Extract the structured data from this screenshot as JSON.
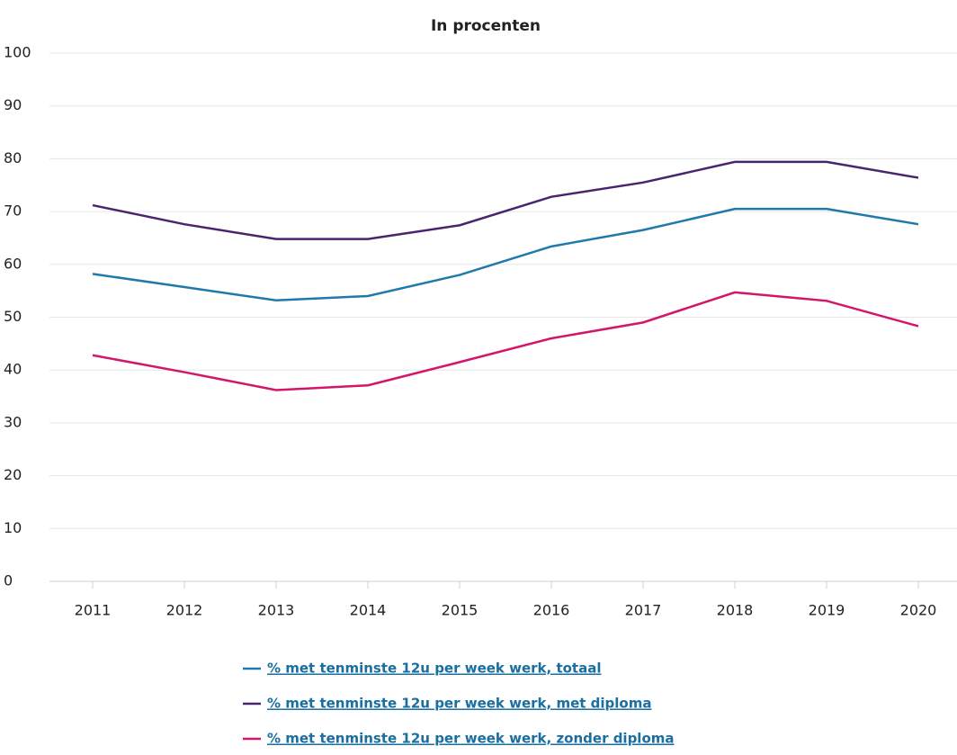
{
  "chart_data": {
    "type": "line",
    "subtitle": "In procenten",
    "categories": [
      "2011",
      "2012",
      "2013",
      "2014",
      "2015",
      "2016",
      "2017",
      "2018",
      "2019",
      "2020"
    ],
    "series": [
      {
        "name": "% met tenminste 12u per week werk, totaal",
        "color": "#1f7aac",
        "values": [
          58.2,
          55.7,
          53.2,
          54.0,
          58.0,
          63.4,
          66.5,
          70.5,
          70.5,
          67.6
        ]
      },
      {
        "name": "% met tenminste 12u per week werk, met diploma",
        "color": "#4b2470",
        "values": [
          71.2,
          67.6,
          64.8,
          64.8,
          67.4,
          72.8,
          75.5,
          79.4,
          79.4,
          76.4
        ]
      },
      {
        "name": "% met tenminste 12u per week werk, zonder diploma",
        "color": "#d3166b",
        "values": [
          42.8,
          39.6,
          36.2,
          37.1,
          41.5,
          46.0,
          49.0,
          54.7,
          53.1,
          48.3
        ]
      }
    ],
    "ylim": [
      0,
      100
    ],
    "yticks": [
      0,
      10,
      20,
      30,
      40,
      50,
      60,
      70,
      80,
      90,
      100
    ],
    "grid": true
  }
}
